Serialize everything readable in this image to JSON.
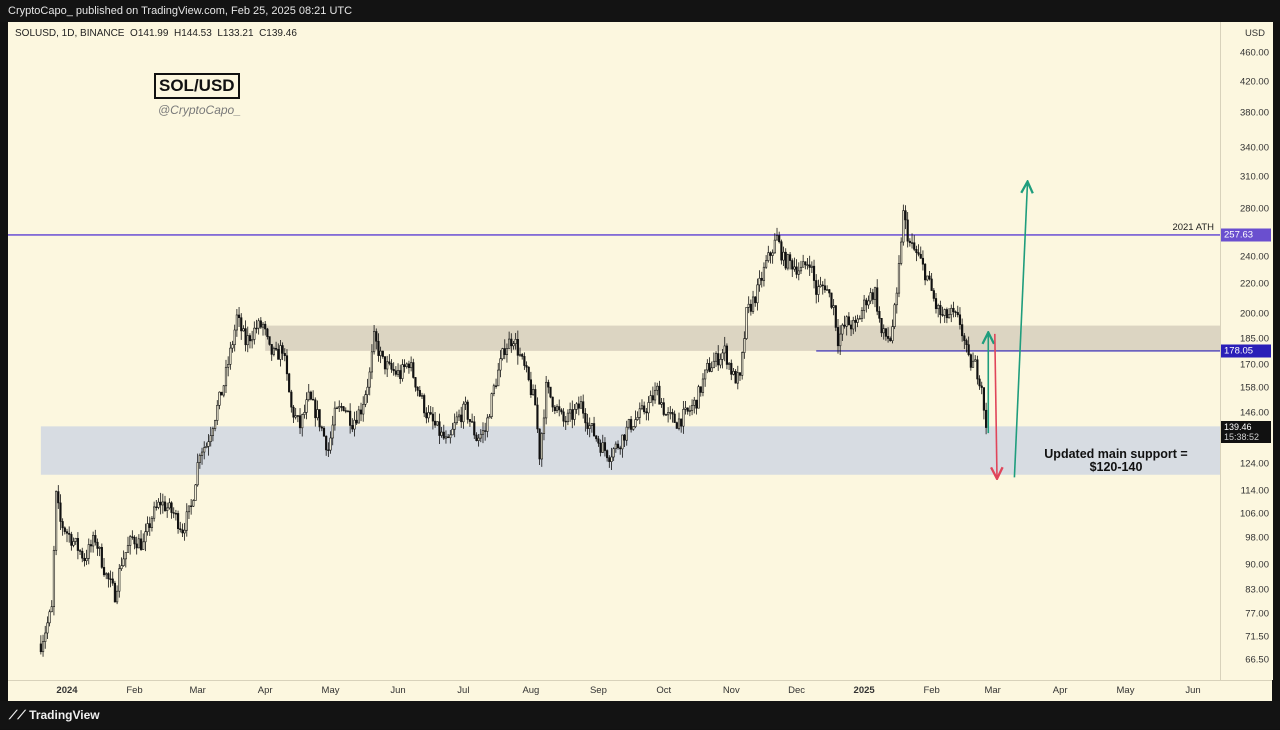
{
  "header": {
    "text": "CryptoCapo_ published on TradingView.com, Feb 25, 2025 08:21 UTC"
  },
  "footer": {
    "logo_text": "TradingView"
  },
  "colors": {
    "background": "#fcf7df",
    "resistance_line": "#5b3fd4",
    "upper_zone": "#dcd5c2",
    "lower_zone": "#d7dce2",
    "up_arrow": "#1f9d7d",
    "down_arrow": "#e0455a"
  },
  "chart_data": {
    "type": "candlestick",
    "symbol_line": "SOLUSD, 1D, BINANCE",
    "ohlc": {
      "open": "O141.99",
      "high": "H144.53",
      "low": "L133.21",
      "close": "C139.46"
    },
    "title": "SOL/USD",
    "author": "@CryptoCapo_",
    "y_scale": "log",
    "y_unit": "USD",
    "ylim": [
      62,
      475
    ],
    "y_ticks": [
      "460.00",
      "420.00",
      "380.00",
      "340.00",
      "310.00",
      "280.00",
      "240.00",
      "220.00",
      "200.00",
      "185.00",
      "170.00",
      "158.00",
      "146.00",
      "124.00",
      "114.00",
      "106.00",
      "98.00",
      "90.00",
      "83.00",
      "77.00",
      "71.50",
      "66.50"
    ],
    "x_ticks": [
      {
        "label": "2024",
        "date": "2024-01-01",
        "bold": true
      },
      {
        "label": "Feb",
        "date": "2024-02-01"
      },
      {
        "label": "Mar",
        "date": "2024-03-01"
      },
      {
        "label": "Apr",
        "date": "2024-04-01"
      },
      {
        "label": "May",
        "date": "2024-05-01"
      },
      {
        "label": "Jun",
        "date": "2024-06-01"
      },
      {
        "label": "Jul",
        "date": "2024-07-01"
      },
      {
        "label": "Aug",
        "date": "2024-08-01"
      },
      {
        "label": "Sep",
        "date": "2024-09-01"
      },
      {
        "label": "Oct",
        "date": "2024-10-01"
      },
      {
        "label": "Nov",
        "date": "2024-11-01"
      },
      {
        "label": "Dec",
        "date": "2024-12-01"
      },
      {
        "label": "2025",
        "date": "2025-01-01",
        "bold": true
      },
      {
        "label": "Feb",
        "date": "2025-02-01"
      },
      {
        "label": "Mar",
        "date": "2025-03-01"
      },
      {
        "label": "Apr",
        "date": "2025-04-01"
      },
      {
        "label": "May",
        "date": "2025-05-01"
      },
      {
        "label": "Jun",
        "date": "2025-06-01"
      }
    ],
    "resistance": {
      "label": "2021 ATH",
      "value": 257.63,
      "badge": "257.63"
    },
    "level_line": {
      "value": 178.05,
      "badge": "178.05",
      "start": "2024-12-10"
    },
    "zones": [
      {
        "name": "upper-zone",
        "low": 178.05,
        "high": 193,
        "start": "2024-04-01"
      },
      {
        "name": "main-support",
        "low": 120,
        "high": 140,
        "start": "2023-12-20"
      }
    ],
    "support_annotation": {
      "line1": "Updated main support =",
      "line2": "$120-140"
    },
    "last_price": {
      "price": "139.46",
      "countdown": "15:38:52",
      "value": 139.46
    },
    "arrows": [
      {
        "name": "small-up-arrow",
        "color": "up",
        "from": [
          "2025-02-27",
          137
        ],
        "to": [
          "2025-02-27",
          188
        ]
      },
      {
        "name": "down-arrow",
        "color": "down",
        "from": [
          "2025-03-02",
          188
        ],
        "to": [
          "2025-03-03",
          119
        ]
      },
      {
        "name": "big-up-arrow",
        "color": "up",
        "from": [
          "2025-03-11",
          119
        ],
        "to": [
          "2025-03-17",
          304
        ]
      }
    ],
    "price_path": [
      [
        "2023-12-20",
        70
      ],
      [
        "2023-12-25",
        78
      ],
      [
        "2023-12-27",
        112
      ],
      [
        "2023-12-29",
        103
      ],
      [
        "2024-01-05",
        96
      ],
      [
        "2024-01-09",
        92
      ],
      [
        "2024-01-14",
        98
      ],
      [
        "2024-01-19",
        87
      ],
      [
        "2024-01-23",
        82
      ],
      [
        "2024-01-26",
        91
      ],
      [
        "2024-01-31",
        98
      ],
      [
        "2024-02-05",
        96
      ],
      [
        "2024-02-09",
        105
      ],
      [
        "2024-02-13",
        110
      ],
      [
        "2024-02-19",
        106
      ],
      [
        "2024-02-23",
        101
      ],
      [
        "2024-02-27",
        108
      ],
      [
        "2024-03-02",
        130
      ],
      [
        "2024-03-05",
        132
      ],
      [
        "2024-03-09",
        145
      ],
      [
        "2024-03-13",
        160
      ],
      [
        "2024-03-17",
        183
      ],
      [
        "2024-03-19",
        198
      ],
      [
        "2024-03-23",
        183
      ],
      [
        "2024-03-28",
        192
      ],
      [
        "2024-03-31",
        193
      ],
      [
        "2024-04-03",
        178
      ],
      [
        "2024-04-06",
        175
      ],
      [
        "2024-04-09",
        180
      ],
      [
        "2024-04-13",
        148
      ],
      [
        "2024-04-17",
        140
      ],
      [
        "2024-04-21",
        153
      ],
      [
        "2024-04-25",
        145
      ],
      [
        "2024-04-30",
        130
      ],
      [
        "2024-05-03",
        145
      ],
      [
        "2024-05-07",
        150
      ],
      [
        "2024-05-11",
        142
      ],
      [
        "2024-05-15",
        148
      ],
      [
        "2024-05-19",
        165
      ],
      [
        "2024-05-21",
        185
      ],
      [
        "2024-05-25",
        172
      ],
      [
        "2024-05-28",
        168
      ],
      [
        "2024-06-02",
        165
      ],
      [
        "2024-06-06",
        172
      ],
      [
        "2024-06-10",
        158
      ],
      [
        "2024-06-14",
        146
      ],
      [
        "2024-06-18",
        140
      ],
      [
        "2024-06-24",
        132
      ],
      [
        "2024-06-28",
        143
      ],
      [
        "2024-07-02",
        148
      ],
      [
        "2024-07-07",
        135
      ],
      [
        "2024-07-11",
        138
      ],
      [
        "2024-07-15",
        158
      ],
      [
        "2024-07-20",
        180
      ],
      [
        "2024-07-24",
        186
      ],
      [
        "2024-07-27",
        175
      ],
      [
        "2024-07-30",
        165
      ],
      [
        "2024-08-03",
        150
      ],
      [
        "2024-08-05",
        128
      ],
      [
        "2024-08-08",
        158
      ],
      [
        "2024-08-12",
        150
      ],
      [
        "2024-08-16",
        142
      ],
      [
        "2024-08-20",
        145
      ],
      [
        "2024-08-24",
        150
      ],
      [
        "2024-08-28",
        140
      ],
      [
        "2024-09-02",
        132
      ],
      [
        "2024-09-06",
        128
      ],
      [
        "2024-09-10",
        132
      ],
      [
        "2024-09-15",
        140
      ],
      [
        "2024-09-20",
        145
      ],
      [
        "2024-09-24",
        150
      ],
      [
        "2024-09-28",
        157
      ],
      [
        "2024-10-02",
        145
      ],
      [
        "2024-10-07",
        142
      ],
      [
        "2024-10-12",
        146
      ],
      [
        "2024-10-16",
        152
      ],
      [
        "2024-10-21",
        168
      ],
      [
        "2024-10-25",
        173
      ],
      [
        "2024-10-29",
        178
      ],
      [
        "2024-11-02",
        164
      ],
      [
        "2024-11-05",
        162
      ],
      [
        "2024-11-08",
        200
      ],
      [
        "2024-11-13",
        215
      ],
      [
        "2024-11-17",
        235
      ],
      [
        "2024-11-22",
        255
      ],
      [
        "2024-11-25",
        238
      ],
      [
        "2024-11-29",
        235
      ],
      [
        "2024-12-03",
        230
      ],
      [
        "2024-12-07",
        238
      ],
      [
        "2024-12-10",
        215
      ],
      [
        "2024-12-14",
        220
      ],
      [
        "2024-12-18",
        205
      ],
      [
        "2024-12-20",
        185
      ],
      [
        "2024-12-24",
        195
      ],
      [
        "2024-12-28",
        192
      ],
      [
        "2025-01-02",
        210
      ],
      [
        "2025-01-06",
        215
      ],
      [
        "2025-01-09",
        188
      ],
      [
        "2025-01-13",
        185
      ],
      [
        "2025-01-16",
        210
      ],
      [
        "2025-01-18",
        255
      ],
      [
        "2025-01-19",
        275
      ],
      [
        "2025-01-22",
        250
      ],
      [
        "2025-01-26",
        240
      ],
      [
        "2025-01-30",
        225
      ],
      [
        "2025-02-03",
        205
      ],
      [
        "2025-02-06",
        198
      ],
      [
        "2025-02-10",
        200
      ],
      [
        "2025-02-14",
        195
      ],
      [
        "2025-02-18",
        172
      ],
      [
        "2025-02-21",
        170
      ],
      [
        "2025-02-24",
        160
      ],
      [
        "2025-02-26",
        139.46
      ]
    ]
  }
}
